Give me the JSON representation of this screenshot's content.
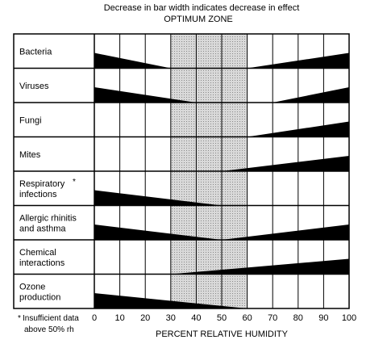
{
  "chart_data": {
    "type": "bar",
    "title": "Decrease in bar width indicates decrease in effect",
    "subtitle": "OPTIMUM ZONE",
    "xlabel": "PERCENT RELATIVE HUMIDITY",
    "xlim": [
      0,
      100
    ],
    "xticks": [
      "0",
      "10",
      "20",
      "30",
      "40",
      "50",
      "60",
      "70",
      "80",
      "90",
      "100"
    ],
    "optimum_zone": [
      30,
      60
    ],
    "footnote": "Insufficient data above 50% rh",
    "footnote_marker": "*",
    "series": [
      {
        "name": "Bacteria",
        "label_lines": [
          "Bacteria"
        ],
        "segments": [
          {
            "x": [
              0,
              30
            ],
            "w": [
              1,
              0
            ]
          },
          {
            "x": [
              60,
              100
            ],
            "w": [
              0,
              1
            ]
          }
        ]
      },
      {
        "name": "Viruses",
        "label_lines": [
          "Viruses"
        ],
        "segments": [
          {
            "x": [
              0,
              40
            ],
            "w": [
              1,
              0
            ]
          },
          {
            "x": [
              70,
              100
            ],
            "w": [
              0,
              1
            ]
          }
        ]
      },
      {
        "name": "Fungi",
        "label_lines": [
          "Fungi"
        ],
        "segments": [
          {
            "x": [
              60,
              100
            ],
            "w": [
              0,
              1
            ]
          }
        ]
      },
      {
        "name": "Mites",
        "label_lines": [
          "Mites"
        ],
        "segments": [
          {
            "x": [
              50,
              100
            ],
            "w": [
              0,
              1
            ]
          }
        ]
      },
      {
        "name": "Respiratory infections",
        "label_lines": [
          "Respiratory",
          "infections"
        ],
        "footnote_mark": true,
        "segments": [
          {
            "x": [
              0,
              50
            ],
            "w": [
              1,
              0
            ]
          }
        ]
      },
      {
        "name": "Allergic rhinitis and asthma",
        "label_lines": [
          "Allergic rhinitis",
          "and asthma"
        ],
        "segments": [
          {
            "x": [
              0,
              50
            ],
            "w": [
              1,
              0
            ]
          },
          {
            "x": [
              50,
              100
            ],
            "w": [
              0,
              1
            ]
          }
        ]
      },
      {
        "name": "Chemical interactions",
        "label_lines": [
          "Chemical",
          "interactions"
        ],
        "segments": [
          {
            "x": [
              30,
              100
            ],
            "w": [
              0,
              1
            ]
          }
        ]
      },
      {
        "name": "Ozone production",
        "label_lines": [
          "Ozone",
          "production"
        ],
        "segments": [
          {
            "x": [
              0,
              60
            ],
            "w": [
              1,
              0
            ]
          }
        ]
      }
    ],
    "grid": true,
    "colors": {
      "bar": "#000000",
      "optimum_fill": "#c8c8c8",
      "grid": "#000000"
    }
  }
}
